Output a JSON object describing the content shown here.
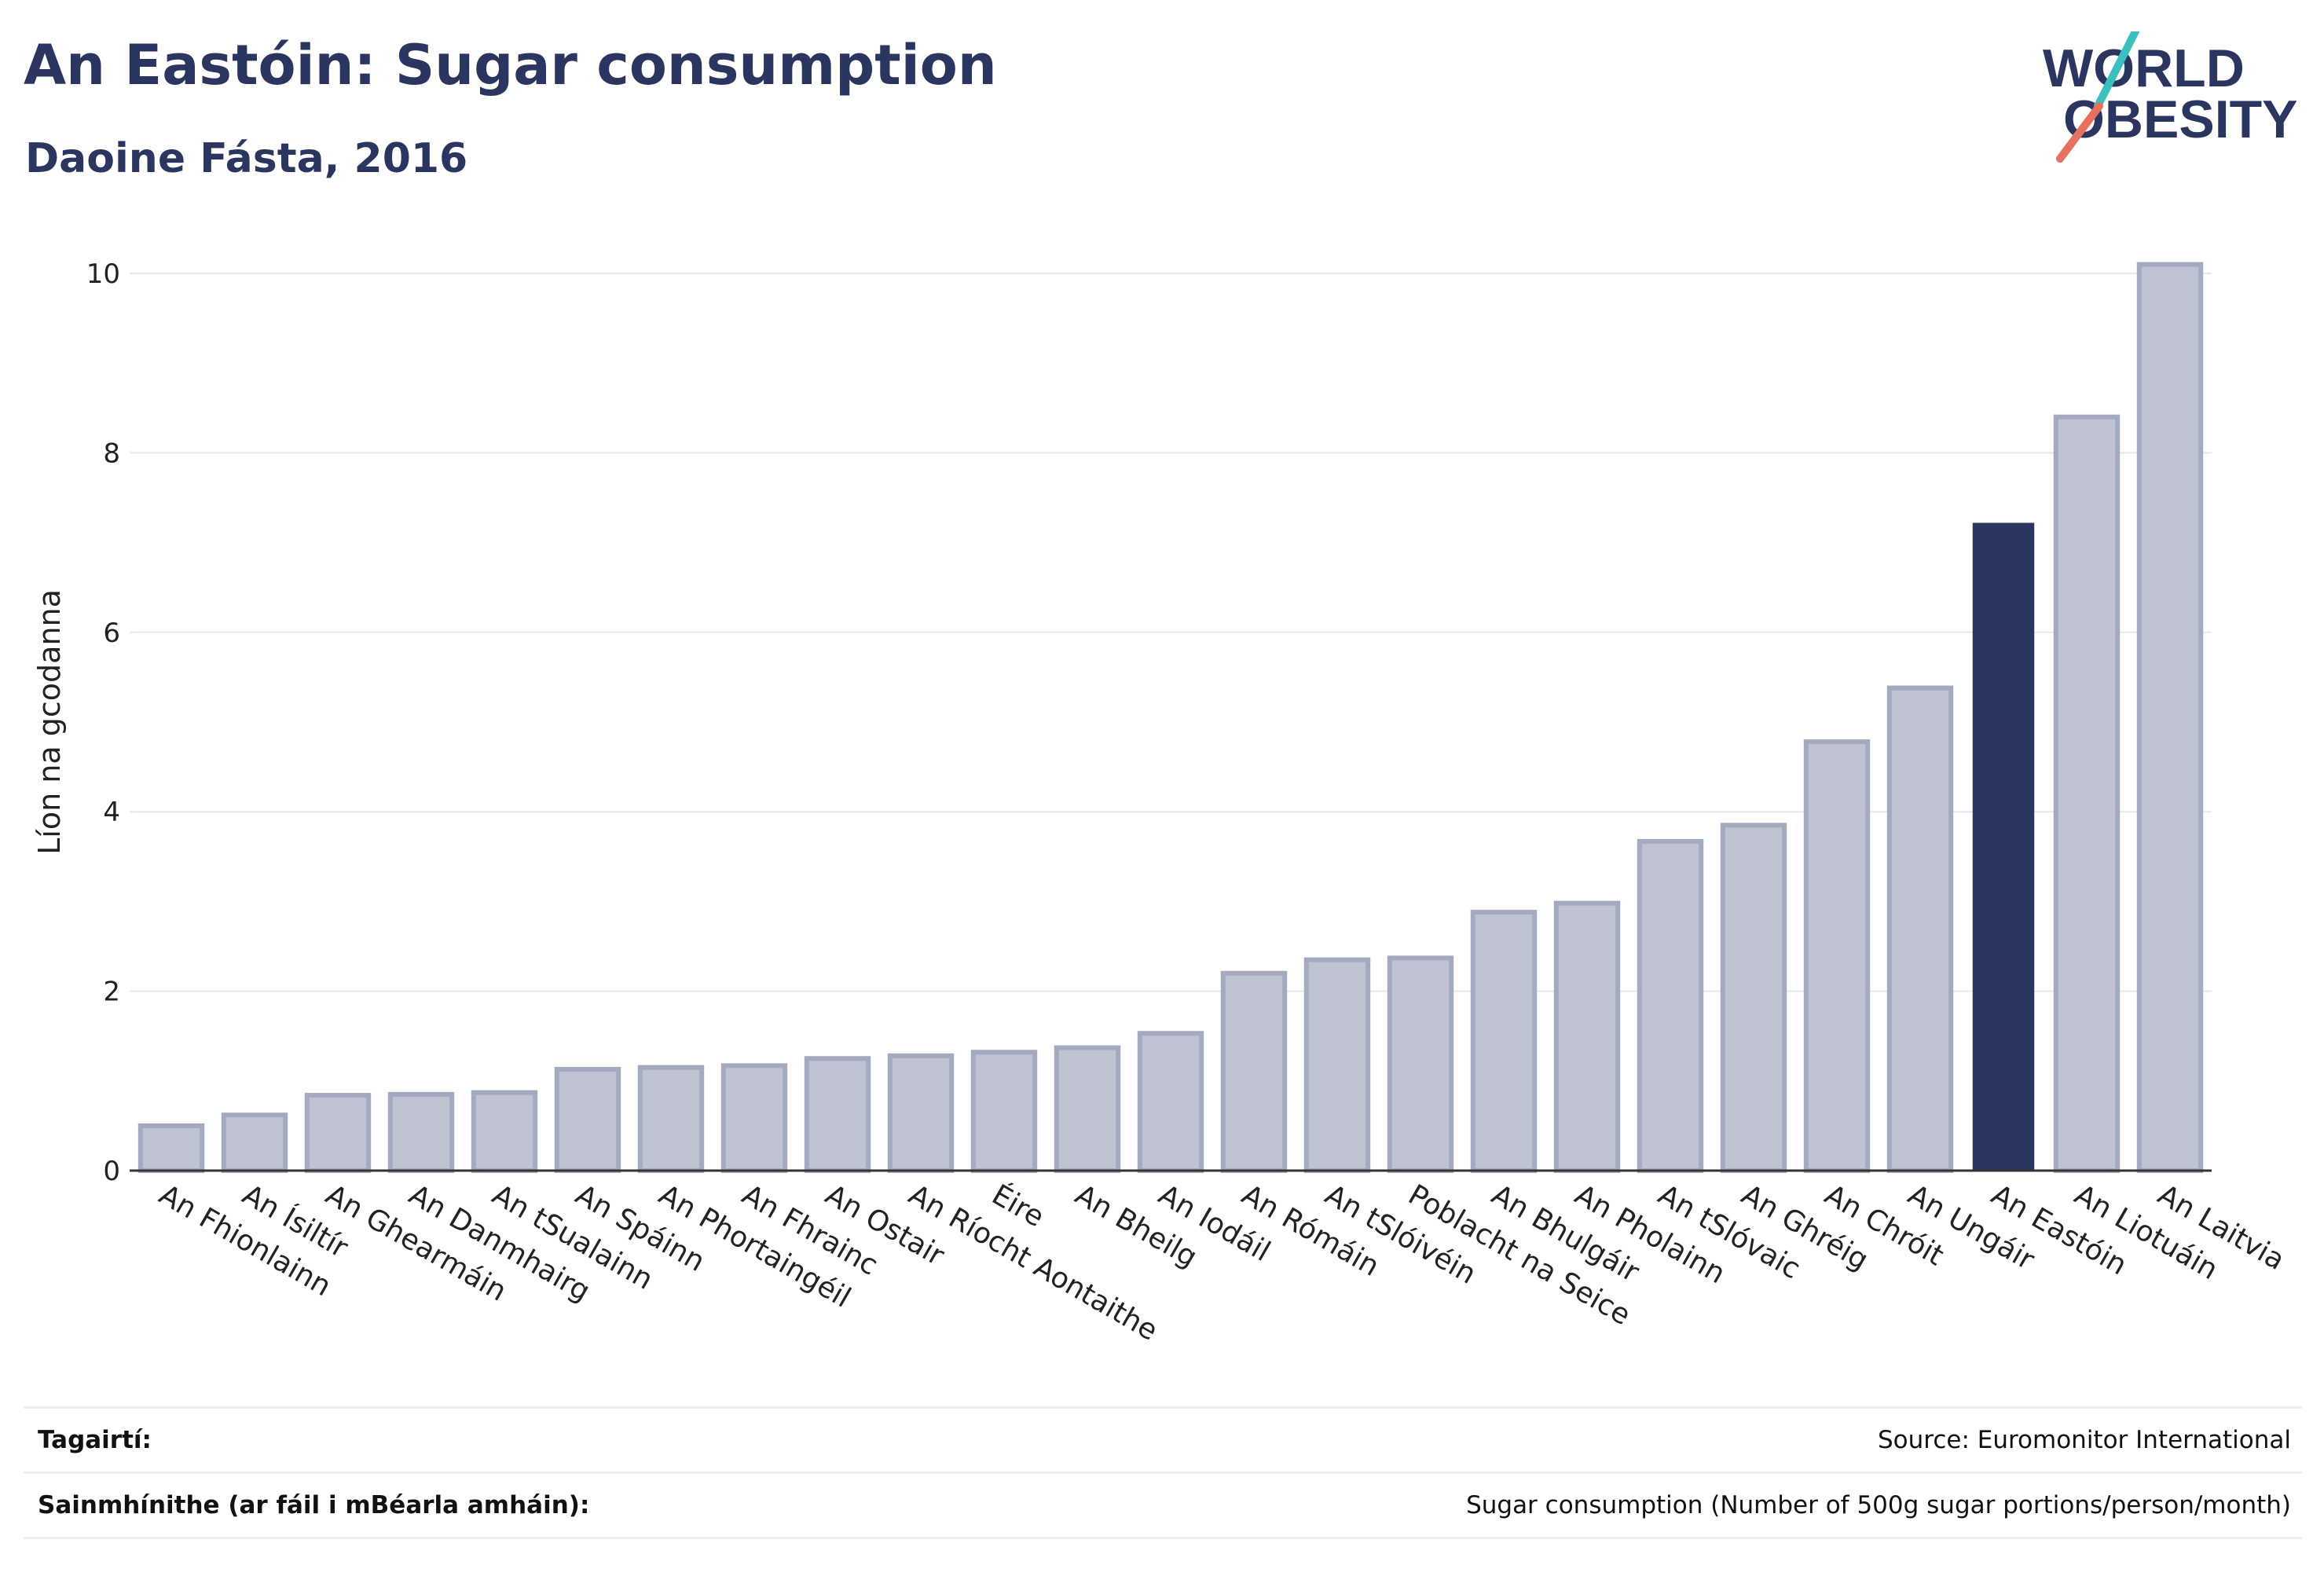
{
  "header": {
    "title": "An Eastóin: Sugar consumption",
    "subtitle": "Daoine Fásta, 2016"
  },
  "logo": {
    "line1": "WORLD",
    "line2": "OBESITY",
    "slash_colors": [
      "#3bbfbf",
      "#e8705e"
    ]
  },
  "colors": {
    "bar": "#bfc3d1",
    "bar_border": "#a3a9bf",
    "highlight": "#2b3660",
    "text": "#2b3660"
  },
  "chart_data": {
    "type": "bar",
    "ylabel": "Líon na gcodanna",
    "xlabel": "",
    "ylim": [
      0,
      10
    ],
    "yticks": [
      0,
      2,
      4,
      6,
      8,
      10
    ],
    "grid": true,
    "highlight": "An Eastóin",
    "categories": [
      "An Fhionlainn",
      "An Ísiltír",
      "An Ghearmáin",
      "An Danmhairg",
      "An tSualainn",
      "An Spáinn",
      "An Phortaingéil",
      "An Fhrainc",
      "An Ostair",
      "An Ríocht Aontaithe",
      "Éire",
      "An Bheilg",
      "An Iodáil",
      "An Rómáin",
      "An tSlóivéin",
      "Poblacht na Seice",
      "An Bhulgáir",
      "An Pholainn",
      "An tSlóvaic",
      "An Ghréig",
      "An Chróit",
      "An Ungáir",
      "An Eastóin",
      "An Liotuáin",
      "An Laitvia"
    ],
    "values": [
      0.5,
      0.62,
      0.84,
      0.85,
      0.87,
      1.13,
      1.15,
      1.17,
      1.25,
      1.28,
      1.32,
      1.37,
      1.53,
      2.2,
      2.35,
      2.37,
      2.88,
      2.98,
      3.67,
      3.85,
      4.78,
      5.38,
      7.22,
      8.4,
      10.1
    ]
  },
  "footer": {
    "references_label": "Tagairtí:",
    "references_value": "Source: Euromonitor International",
    "definitions_label": "Sainmhínithe (ar fáil i mBéarla amháin):",
    "definitions_value": "Sugar consumption (Number of 500g sugar portions/person/month)"
  }
}
